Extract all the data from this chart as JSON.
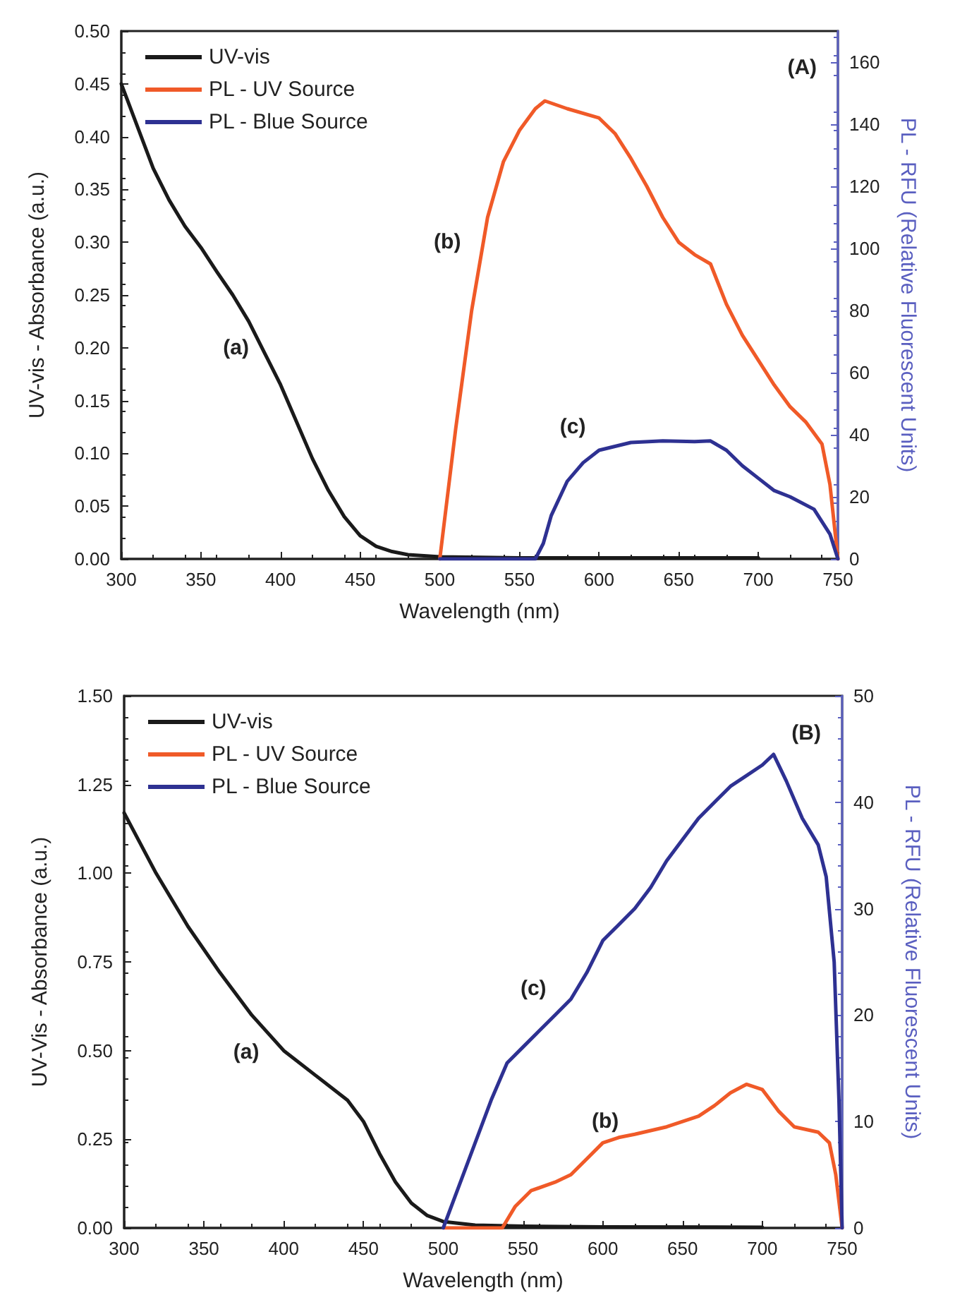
{
  "chart_data": [
    {
      "type": "line",
      "xlabel": "Wavelength (nm)",
      "ylabel": "UV-vis - Absorbance (a.u.)",
      "y2label": "PL - RFU (Relative Fluorescent Units)",
      "xlim": [
        300,
        750
      ],
      "xticks": [
        300,
        350,
        400,
        450,
        500,
        550,
        600,
        650,
        700,
        750
      ],
      "ylim": [
        0,
        0.5
      ],
      "yticks": [
        {
          "value": 0,
          "label": "0.00"
        },
        {
          "value": 0.05,
          "label": "0.05"
        },
        {
          "value": 0.1,
          "label": "0.10"
        },
        {
          "value": 0.15,
          "label": "0.15"
        },
        {
          "value": 0.2,
          "label": "0.20"
        },
        {
          "value": 0.25,
          "label": "0.25"
        },
        {
          "value": 0.3,
          "label": "0.30"
        },
        {
          "value": 0.35,
          "label": "0.35"
        },
        {
          "value": 0.4,
          "label": "0.40"
        },
        {
          "value": 0.45,
          "label": "0.45"
        },
        {
          "value": 0.5,
          "label": "0.50"
        }
      ],
      "y2lim": [
        0,
        170
      ],
      "y2ticks": [
        0,
        20,
        40,
        60,
        80,
        100,
        120,
        140,
        160
      ],
      "grid": false,
      "legend": "top left",
      "line_style": "solid",
      "marker": "none",
      "annotations": [
        "(A)",
        "(a)",
        "(b)",
        "(c)"
      ],
      "series": [
        {
          "name": "UV-vis",
          "color": "#1a1a1a",
          "x": [
            300,
            310,
            320,
            330,
            340,
            350,
            360,
            370,
            380,
            390,
            400,
            410,
            420,
            430,
            440,
            450,
            460,
            470,
            480,
            500,
            550,
            600,
            700
          ],
          "values": [
            0.45,
            0.41,
            0.37,
            0.34,
            0.315,
            0.295,
            0.272,
            0.25,
            0.225,
            0.195,
            0.165,
            0.13,
            0.095,
            0.065,
            0.04,
            0.022,
            0.012,
            0.007,
            0.004,
            0.002,
            0.001,
            0.001,
            0.001
          ]
        },
        {
          "name": "PL - UV Source",
          "color": "#f05a28",
          "axis": "y2",
          "x": [
            500,
            510,
            520,
            530,
            540,
            550,
            560,
            566,
            580,
            600,
            610,
            620,
            630,
            640,
            650,
            660,
            670,
            680,
            690,
            700,
            710,
            720,
            730,
            740,
            745,
            750
          ],
          "values": [
            0,
            42,
            80,
            110,
            128,
            138,
            145,
            147.5,
            145,
            142,
            137,
            129,
            120,
            110,
            102,
            98,
            95,
            82,
            72,
            64,
            56,
            49,
            44,
            37,
            24,
            0
          ]
        },
        {
          "name": "PL - Blue Source",
          "color": "#2e3192",
          "axis": "y2",
          "x": [
            500,
            560,
            565,
            570,
            580,
            590,
            600,
            620,
            640,
            660,
            670,
            680,
            690,
            700,
            710,
            720,
            735,
            745,
            750
          ],
          "values": [
            0,
            0,
            5,
            14,
            25,
            31,
            35,
            37.5,
            38,
            37.8,
            38,
            35,
            30,
            26,
            22,
            20,
            16,
            8,
            0
          ]
        }
      ]
    },
    {
      "type": "line",
      "xlabel": "Wavelength (nm)",
      "ylabel": "UV-Vis - Absorbance (a.u.)",
      "y2label": "PL - RFU (Relative Fluorescent Units)",
      "xlim": [
        300,
        750
      ],
      "xticks": [
        300,
        350,
        400,
        450,
        500,
        550,
        600,
        650,
        700,
        750
      ],
      "ylim": [
        0,
        1.5
      ],
      "yticks": [
        {
          "value": 0,
          "label": "0.00"
        },
        {
          "value": 0.25,
          "label": "0.25"
        },
        {
          "value": 0.5,
          "label": "0.50"
        },
        {
          "value": 0.75,
          "label": "0.75"
        },
        {
          "value": 1,
          "label": "1.00"
        },
        {
          "value": 1.25,
          "label": "1.25"
        },
        {
          "value": 1.5,
          "label": "1.50"
        }
      ],
      "y2lim": [
        0,
        50
      ],
      "y2ticks": [
        0,
        10,
        20,
        30,
        40,
        50
      ],
      "grid": false,
      "legend": "top left",
      "line_style": "solid",
      "marker": "none",
      "annotations": [
        "(B)",
        "(a)",
        "(c)",
        "(b)"
      ],
      "series": [
        {
          "name": "UV-vis",
          "color": "#1a1a1a",
          "x": [
            300,
            320,
            340,
            360,
            380,
            400,
            420,
            440,
            450,
            460,
            470,
            480,
            490,
            500,
            520,
            550,
            600,
            700
          ],
          "values": [
            1.17,
            1.0,
            0.85,
            0.72,
            0.6,
            0.5,
            0.43,
            0.36,
            0.3,
            0.21,
            0.13,
            0.07,
            0.035,
            0.018,
            0.008,
            0.005,
            0.003,
            0.002
          ]
        },
        {
          "name": "PL - UV Source",
          "color": "#f05a28",
          "axis": "y2",
          "x": [
            500,
            537,
            545,
            555,
            570,
            580,
            590,
            600,
            610,
            620,
            640,
            650,
            660,
            670,
            680,
            690,
            700,
            710,
            720,
            735,
            742,
            746,
            750
          ],
          "values": [
            0,
            0,
            2,
            3.5,
            4.3,
            5,
            6.5,
            8,
            8.5,
            8.8,
            9.5,
            10,
            10.5,
            11.5,
            12.7,
            13.5,
            13,
            11,
            9.5,
            9,
            8,
            5,
            0
          ]
        },
        {
          "name": "PL - Blue Source",
          "color": "#2e3192",
          "axis": "y2",
          "x": [
            500,
            510,
            520,
            530,
            540,
            550,
            560,
            570,
            580,
            590,
            600,
            610,
            620,
            630,
            640,
            650,
            660,
            670,
            680,
            690,
            700,
            707,
            715,
            725,
            735,
            740,
            745,
            748,
            750
          ],
          "values": [
            0,
            4,
            8,
            12,
            15.5,
            17,
            18.5,
            20,
            21.5,
            24,
            27,
            28.5,
            30,
            32,
            34.5,
            36.5,
            38.5,
            40,
            41.5,
            42.5,
            43.5,
            44.5,
            42,
            38.5,
            36,
            33,
            25,
            12,
            0
          ]
        }
      ]
    }
  ]
}
